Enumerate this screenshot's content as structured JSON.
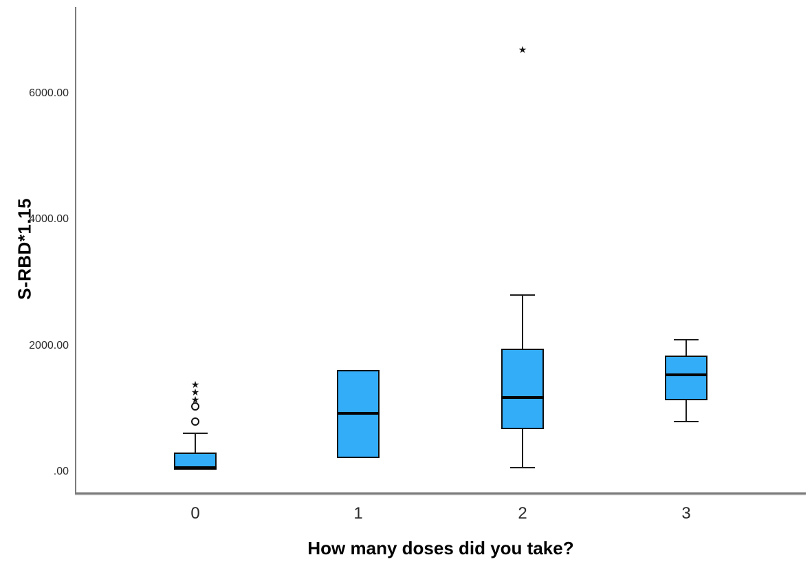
{
  "chart_data": {
    "type": "boxplot",
    "title": "",
    "xlabel": "How many doses did you take?",
    "ylabel": "S-RBD*1.15",
    "categories": [
      "0",
      "1",
      "2",
      "3"
    ],
    "ylim": [
      0,
      7400
    ],
    "grid": false,
    "legend": "none",
    "y_ticks": [
      {
        "value": 0,
        "label": ".00"
      },
      {
        "value": 2000,
        "label": "2000.00"
      },
      {
        "value": 4000,
        "label": "4000.00"
      },
      {
        "value": 6000,
        "label": "6000.00"
      }
    ],
    "series": [
      {
        "category": "0",
        "q1": 30,
        "median": 70,
        "q3": 305,
        "whisker_low": 30,
        "whisker_high": 610,
        "outliers": [
          800,
          1040
        ],
        "extremes": [
          1130,
          1260,
          1370
        ]
      },
      {
        "category": "1",
        "q1": 220,
        "median": 930,
        "q3": 1620,
        "whisker_low": 220,
        "whisker_high": 1620,
        "outliers": [],
        "extremes": []
      },
      {
        "category": "2",
        "q1": 680,
        "median": 1180,
        "q3": 1950,
        "whisker_low": 70,
        "whisker_high": 2800,
        "outliers": [],
        "extremes": [
          6690
        ]
      },
      {
        "category": "3",
        "q1": 1140,
        "median": 1540,
        "q3": 1840,
        "whisker_low": 800,
        "whisker_high": 2090,
        "outliers": [],
        "extremes": []
      }
    ],
    "colors": {
      "box_fill": "#33ADF8",
      "box_border": "#0f0f0f",
      "median": "#050505",
      "axis": "#7b7b7b",
      "tick_text": "#2b2b2b",
      "title_text": "#000000"
    },
    "markers": {
      "outlier_symbol": "circle",
      "extreme_symbol": "star"
    }
  }
}
